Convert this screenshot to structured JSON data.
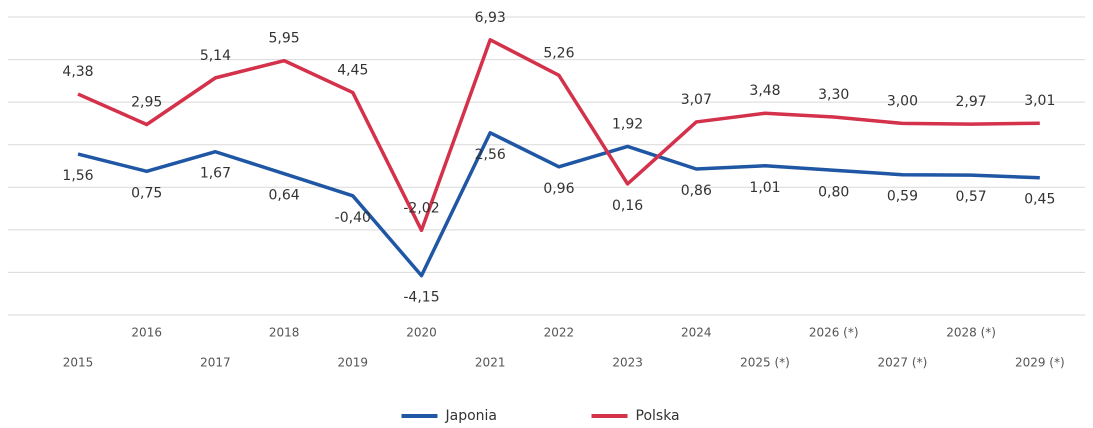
{
  "chart_data": {
    "type": "line",
    "categories": [
      "2015",
      "2016",
      "2017",
      "2018",
      "2019",
      "2020",
      "2021",
      "2022",
      "2023",
      "2024",
      "2025 (*)",
      "2026 (*)",
      "2027 (*)",
      "2028 (*)",
      "2029 (*)"
    ],
    "series": [
      {
        "name": "Japonia",
        "color": "#1f57a4",
        "values": [
          1.56,
          0.75,
          1.67,
          0.64,
          -0.4,
          -4.15,
          2.56,
          0.96,
          1.92,
          0.86,
          1.01,
          0.8,
          0.59,
          0.57,
          0.45
        ],
        "value_labels": [
          "1,56",
          "0,75",
          "1,67",
          "0,64",
          "-0,40",
          "-4,15",
          "2,56",
          "0,96",
          "1,92",
          "0,86",
          "1,01",
          "0,80",
          "0,59",
          "0,57",
          "0,45"
        ]
      },
      {
        "name": "Polska",
        "color": "#d4314b",
        "values": [
          4.38,
          2.95,
          5.14,
          5.95,
          4.45,
          -2.02,
          6.93,
          5.26,
          0.16,
          3.07,
          3.48,
          3.3,
          3.0,
          2.97,
          3.01
        ],
        "value_labels": [
          "4,38",
          "2,95",
          "5,14",
          "5,95",
          "4,45",
          "-2,02",
          "6,93",
          "5,26",
          "0,16",
          "3,07",
          "3,48",
          "3,30",
          "3,00",
          "2,97",
          "3,01"
        ]
      }
    ],
    "ylim": [
      -6,
      8
    ],
    "yticks": [
      -6,
      -4,
      -2,
      0,
      2,
      4,
      6,
      8
    ],
    "grid": true,
    "legend": "bottom"
  }
}
